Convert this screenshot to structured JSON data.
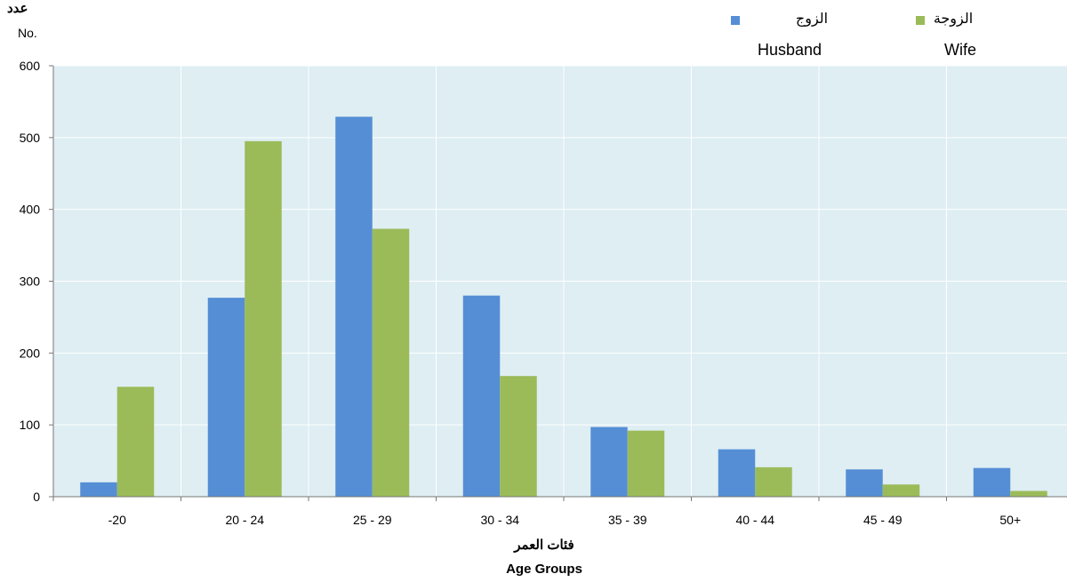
{
  "chart_data": {
    "type": "bar",
    "categories": [
      "-20",
      "20 - 24",
      "25 - 29",
      "30 - 34",
      "35 - 39",
      "40 - 44",
      "45 - 49",
      "50+"
    ],
    "series": [
      {
        "name": "Husband",
        "name_ar": "الزوج",
        "color": "#558ed5",
        "values": [
          20,
          277,
          529,
          280,
          97,
          66,
          38,
          40
        ]
      },
      {
        "name": "Wife",
        "name_ar": "الزوجة",
        "color": "#9bbb59",
        "values": [
          153,
          495,
          373,
          168,
          92,
          41,
          17,
          8
        ]
      }
    ],
    "y_unit_ar": "عدد",
    "y_unit": "No.",
    "xlabel_ar": "فئات العمر",
    "xlabel": "Age Groups",
    "ylim": [
      0,
      600
    ],
    "yticks": [
      0,
      100,
      200,
      300,
      400,
      500,
      600
    ],
    "grid": true,
    "legend_position": "top-right",
    "plot_background": "#deeef3"
  }
}
